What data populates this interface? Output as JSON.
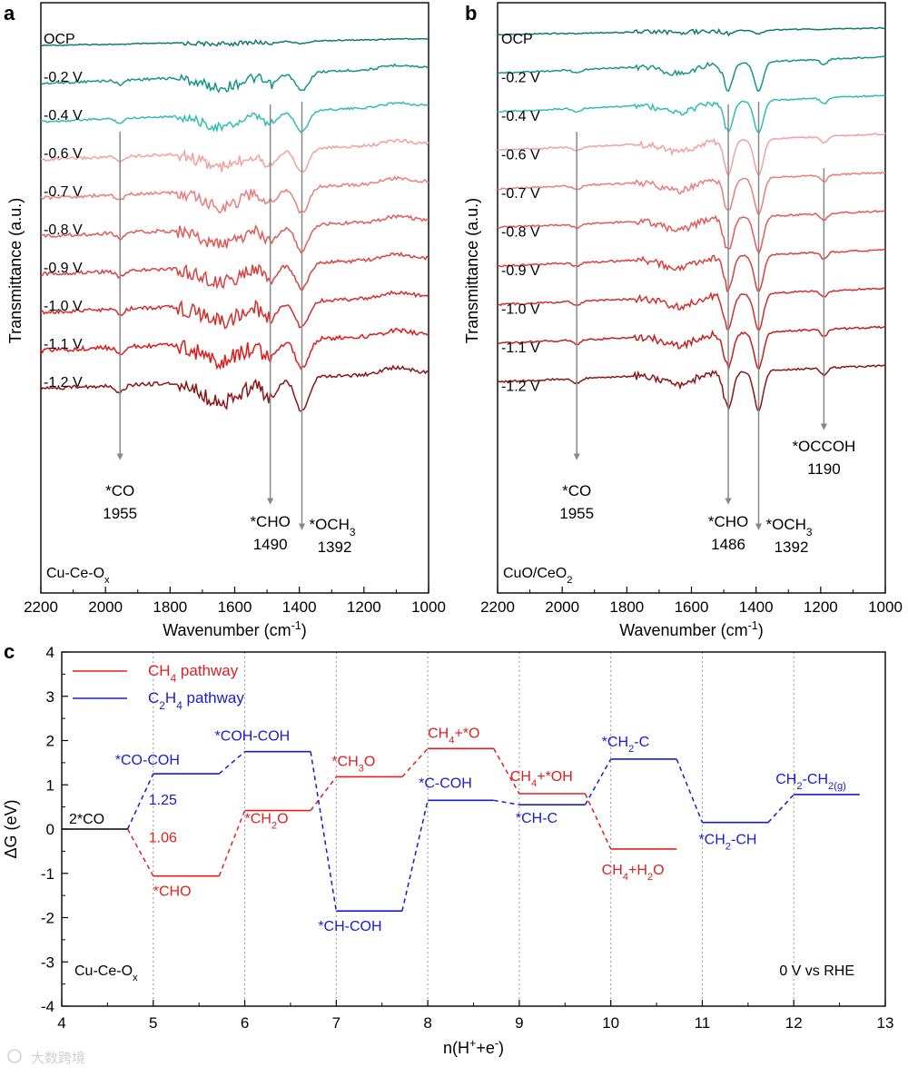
{
  "figure": {
    "watermark": "大数跨境"
  },
  "chart_data": [
    {
      "panel": "a",
      "type": "line",
      "xlabel": "Wavenumber (cm",
      "xlabel_sup": "-1",
      "xlabel_tail": ")",
      "ylabel": "Transmittance (a.u.)",
      "xlim": [
        2200,
        1000
      ],
      "x_reversed": true,
      "xticks": [
        "2200",
        "2000",
        "1800",
        "1600",
        "1400",
        "1200",
        "1000"
      ],
      "sample_label": {
        "text": "Cu-Ce-O",
        "sub": "x"
      },
      "series": [
        {
          "name": "OCP",
          "color": "#0e7a6e",
          "offset": 0,
          "depth": 0.1,
          "noise": 0.6
        },
        {
          "name": "-0.2 V",
          "color": "#14958a",
          "offset": 1,
          "depth": 0.7,
          "noise": 1.4
        },
        {
          "name": "-0.4 V",
          "color": "#2fbdb5",
          "offset": 2,
          "depth": 0.8,
          "noise": 1.2
        },
        {
          "name": "-0.6 V",
          "color": "#f0a2a0",
          "offset": 3,
          "depth": 0.9,
          "noise": 1.6
        },
        {
          "name": "-0.7 V",
          "color": "#ea7e7b",
          "offset": 4,
          "depth": 1.0,
          "noise": 1.8
        },
        {
          "name": "-0.8 V",
          "color": "#e25a57",
          "offset": 5,
          "depth": 1.0,
          "noise": 1.9
        },
        {
          "name": "-0.9 V",
          "color": "#d94040",
          "offset": 6,
          "depth": 1.0,
          "noise": 2.0
        },
        {
          "name": "-1.0 V",
          "color": "#d22e2e",
          "offset": 7,
          "depth": 1.0,
          "noise": 2.1
        },
        {
          "name": "-1.1 V",
          "color": "#e01a1a",
          "offset": 8,
          "depth": 1.1,
          "noise": 2.4
        },
        {
          "name": "-1.2 V",
          "color": "#8b1414",
          "offset": 9,
          "depth": 1.3,
          "noise": 2.0
        }
      ],
      "peaks": [
        {
          "x": 1955,
          "labels": [
            "*CO",
            "1955"
          ],
          "sub": ""
        },
        {
          "x": 1490,
          "labels": [
            "*CHO",
            "1490"
          ],
          "sub": ""
        },
        {
          "x": 1392,
          "labels": [
            "*OCH",
            "1392"
          ],
          "sub": "3"
        }
      ]
    },
    {
      "panel": "b",
      "type": "line",
      "xlabel": "Wavenumber (cm",
      "xlabel_sup": "-1",
      "xlabel_tail": ")",
      "ylabel": "Transmittance (a.u.)",
      "xlim": [
        2200,
        1000
      ],
      "x_reversed": true,
      "xticks": [
        "2200",
        "2000",
        "1800",
        "1600",
        "1400",
        "1200",
        "1000"
      ],
      "sample_label": {
        "text": "CuO/CeO",
        "sub": "2"
      },
      "series": [
        {
          "name": "OCP",
          "color": "#0e7a6e",
          "offset": 0,
          "depth": 0.1,
          "noise": 0.6
        },
        {
          "name": "-0.2 V",
          "color": "#14958a",
          "offset": 1,
          "depth": 0.8,
          "noise": 0.8
        },
        {
          "name": "-0.4 V",
          "color": "#2fbdb5",
          "offset": 2,
          "depth": 0.9,
          "noise": 0.8
        },
        {
          "name": "-0.6 V",
          "color": "#f0a2a0",
          "offset": 3,
          "depth": 1.0,
          "noise": 0.9
        },
        {
          "name": "-0.7 V",
          "color": "#ea7e7b",
          "offset": 4,
          "depth": 1.0,
          "noise": 0.9
        },
        {
          "name": "-0.8 V",
          "color": "#e25a57",
          "offset": 5,
          "depth": 1.0,
          "noise": 1.0
        },
        {
          "name": "-0.9 V",
          "color": "#d94040",
          "offset": 6,
          "depth": 1.0,
          "noise": 1.0
        },
        {
          "name": "-1.0 V",
          "color": "#d22e2e",
          "offset": 7,
          "depth": 1.0,
          "noise": 1.0
        },
        {
          "name": "-1.1 V",
          "color": "#c41e1e",
          "offset": 8,
          "depth": 1.0,
          "noise": 1.0
        },
        {
          "name": "-1.2 V",
          "color": "#8b1414",
          "offset": 9,
          "depth": 1.1,
          "noise": 1.0
        }
      ],
      "peaks": [
        {
          "x": 1955,
          "labels": [
            "*CO",
            "1955"
          ],
          "sub": ""
        },
        {
          "x": 1486,
          "labels": [
            "*CHO",
            "1486"
          ],
          "sub": ""
        },
        {
          "x": 1392,
          "labels": [
            "*OCH",
            "1392"
          ],
          "sub": "3"
        },
        {
          "x": 1190,
          "labels": [
            "*OCCOH",
            "1190"
          ],
          "sub": ""
        }
      ]
    },
    {
      "panel": "c",
      "type": "line",
      "xlabel": "n(H",
      "xlabel_parts": [
        {
          "t": "n(H"
        },
        {
          "t": "+",
          "sup": true
        },
        {
          "t": "+e"
        },
        {
          "t": "-",
          "sup": true
        },
        {
          "t": ")"
        }
      ],
      "ylabel": "ΔG (eV)",
      "xlim": [
        4,
        13
      ],
      "ylim": [
        -4,
        4
      ],
      "xticks": [
        "4",
        "5",
        "6",
        "7",
        "8",
        "9",
        "10",
        "11",
        "12",
        "13"
      ],
      "yticks": [
        "-4",
        "-3",
        "-2",
        "-1",
        "0",
        "1",
        "2",
        "3",
        "4"
      ],
      "grid_x_dotted": [
        5,
        6,
        7,
        8,
        9,
        10,
        11,
        12
      ],
      "sample_label": {
        "text": "Cu-Ce-O",
        "sub": "x"
      },
      "condition_label": "0 V vs RHE",
      "legend": [
        {
          "name": "CH",
          "sub": "4",
          "tail": "  pathway",
          "color": "#e02020"
        },
        {
          "name": "C",
          "sub": "2",
          "mid": "H",
          "sub2": "4",
          "tail": " pathway",
          "color": "#1a1ad0"
        }
      ],
      "start_state": {
        "n": 4,
        "dG": 0,
        "label": "2*CO"
      },
      "series": [
        {
          "name": "CH4 pathway",
          "color": "#e02020",
          "states": [
            {
              "n": 5,
              "dG": -1.06,
              "label": "*CHO"
            },
            {
              "n": 6,
              "dG": 0.42,
              "label": "*CH",
              "sub": "2",
              "tail": "O"
            },
            {
              "n": 7,
              "dG": 1.18,
              "label": "*CH",
              "sub": "3",
              "tail": "O"
            },
            {
              "n": 8,
              "dG": 1.82,
              "label": "CH",
              "sub": "4",
              "tail": "+*O"
            },
            {
              "n": 9,
              "dG": 0.8,
              "label": "CH",
              "sub": "4",
              "tail": "+*OH"
            },
            {
              "n": 10,
              "dG": -0.45,
              "label": "CH",
              "sub": "4",
              "tail": "+H",
              "sub2": "2",
              "tail2": "O"
            }
          ]
        },
        {
          "name": "C2H4 pathway",
          "color": "#1a1ad0",
          "states": [
            {
              "n": 5,
              "dG": 1.25,
              "label": "*CO-COH"
            },
            {
              "n": 6,
              "dG": 1.75,
              "label": "*COH-COH"
            },
            {
              "n": 7,
              "dG": -1.85,
              "label": "*CH-COH"
            },
            {
              "n": 8,
              "dG": 0.65,
              "label": "*C-COH"
            },
            {
              "n": 9,
              "dG": 0.55,
              "label": "*CH-C"
            },
            {
              "n": 10,
              "dG": 1.58,
              "label": "*CH",
              "sub": "2",
              "tail": "-C"
            },
            {
              "n": 11,
              "dG": 0.15,
              "label": "*CH",
              "sub": "2",
              "tail": "-CH"
            },
            {
              "n": 12,
              "dG": 0.78,
              "label": "CH",
              "sub": "2",
              "tail": "-CH",
              "sub2": "2(g)"
            }
          ]
        }
      ],
      "annotations": [
        {
          "text": "1.25",
          "color": "#1a1ad0"
        },
        {
          "text": "1.06",
          "color": "#e02020"
        }
      ]
    }
  ]
}
